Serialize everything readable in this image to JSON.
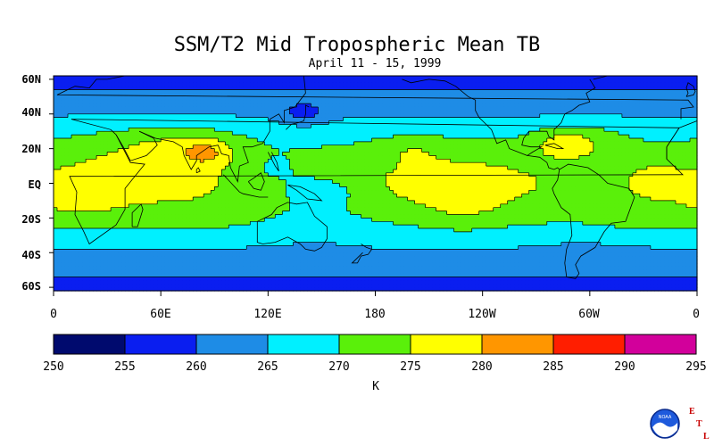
{
  "title": "SSM/T2 Mid Tropospheric Mean TB",
  "subtitle": "April 11 - 15, 1999",
  "lat_labels": [
    "60N",
    "40N",
    "20N",
    "EQ",
    "20S",
    "40S",
    "60S"
  ],
  "lon_labels": [
    "0",
    "60E",
    "120E",
    "180",
    "120W",
    "60W",
    "0"
  ],
  "colorbar": {
    "unit": "K",
    "ticks": [
      "250",
      "255",
      "260",
      "265",
      "270",
      "275",
      "280",
      "285",
      "290",
      "295"
    ],
    "colors": [
      "#000a6e",
      "#0a1ef0",
      "#1e8ce6",
      "#00f0ff",
      "#5af00a",
      "#ffff00",
      "#ff9600",
      "#ff1e00",
      "#d2009b"
    ]
  },
  "logo": {
    "agency": "NOAA",
    "letters": [
      "E",
      "T",
      "L"
    ]
  }
}
